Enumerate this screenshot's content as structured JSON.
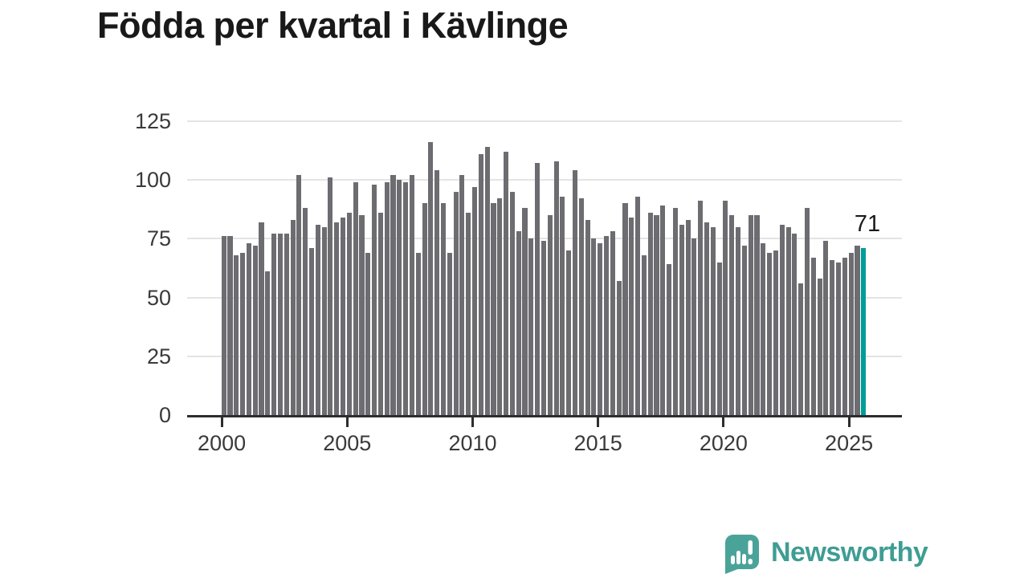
{
  "title": "Födda per kvartal i Kävlinge",
  "annotation": {
    "value": "71"
  },
  "logo": {
    "text": "Newsworthy"
  },
  "colors": {
    "bar": "#6d6c71",
    "highlight": "#009e98",
    "axis": "#2d2d30",
    "grid": "#e4e4e4",
    "tick_label": "#3a3a3a",
    "title_text": "#191919",
    "logo_teal": "#4aa399",
    "logo_text_teal": "#3f9d93"
  },
  "chart_data": {
    "type": "bar",
    "title": "Födda per kvartal i Kävlinge",
    "xlabel": "",
    "ylabel": "",
    "x_unit": "quarter",
    "first_period": "2000 Q1",
    "last_period": "2025 Q3",
    "x_tick_labels": [
      "2000",
      "2005",
      "2010",
      "2015",
      "2020",
      "2025"
    ],
    "y_ticks": [
      0,
      25,
      50,
      75,
      100,
      125
    ],
    "ylim": [
      0,
      125
    ],
    "grid": "horizontal",
    "legend": "none",
    "highlight_index": 102,
    "highlight_label": "71",
    "series": [
      {
        "name": "Födda per kvartal",
        "values": [
          76,
          76,
          68,
          69,
          73,
          72,
          82,
          61,
          77,
          77,
          77,
          83,
          102,
          88,
          71,
          81,
          80,
          101,
          82,
          84,
          86,
          99,
          85,
          69,
          98,
          86,
          99,
          102,
          100,
          99,
          102,
          69,
          90,
          116,
          104,
          90,
          69,
          95,
          102,
          86,
          97,
          111,
          114,
          90,
          92,
          112,
          95,
          78,
          88,
          75,
          107,
          74,
          85,
          108,
          93,
          70,
          104,
          92,
          83,
          75,
          73,
          76,
          78,
          57,
          90,
          84,
          93,
          68,
          86,
          85,
          89,
          64,
          88,
          81,
          83,
          75,
          91,
          82,
          80,
          65,
          91,
          85,
          80,
          72,
          85,
          85,
          73,
          69,
          70,
          81,
          80,
          77,
          56,
          88,
          67,
          58,
          74,
          66,
          65,
          67,
          69,
          72,
          71
        ]
      }
    ]
  }
}
